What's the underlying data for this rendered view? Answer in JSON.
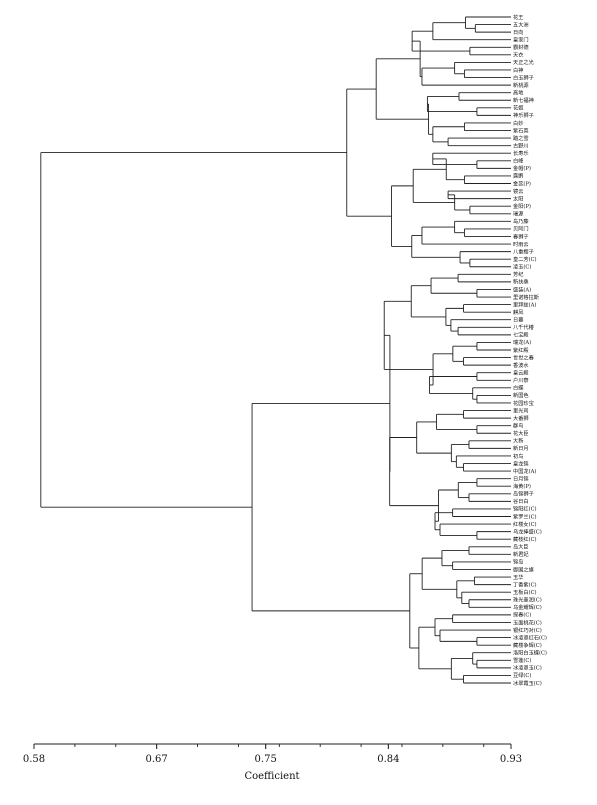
{
  "chart_data": {
    "type": "dendrogram",
    "xlabel": "Coefficient",
    "xlim": [
      0.58,
      0.93
    ],
    "x_ticks": [
      "0.58",
      "0.67",
      "0.75",
      "0.84",
      "0.93"
    ],
    "grid": false,
    "leaves": [
      "花王",
      "五大洲",
      "日向",
      "皇家门",
      "霸封德",
      "天衣",
      "天正之光",
      "白神",
      "白玉狮子",
      "新桃源",
      "高地",
      "新七福神",
      "花姬",
      "神乐狮子",
      "白妙",
      "紫石英",
      "踏之雪",
      "古野川",
      "长寿乐",
      "白峰",
      "金帽(P)",
      "露鹏",
      "金蕊(P)",
      "镜云",
      "太阳",
      "金阳(P)",
      "瑞源",
      "岛乃藤",
      "贝阿门",
      "春狮子",
      "时雨云",
      "八重樱子",
      "皇二芳(C)",
      "凌玉(C)",
      "芳纪",
      "新扶桑",
      "盛装(A)",
      "里诺格拉斯",
      "里拜兹(A)",
      "麒凤",
      "日暮",
      "八千代椿",
      "七宝殿",
      "瑞龙(A)",
      "紫红殿",
      "世世之春",
      "香波水",
      "皇云殿",
      "户川寮",
      "白蝶",
      "新国色",
      "花园珍宝",
      "里光司",
      "大番狮",
      "群鸟",
      "花大臣",
      "大新",
      "新日月",
      "初鸟",
      "皇龙锦",
      "中国龙(A)",
      "日月锦",
      "海黄(P)",
      "岛锦狮子",
      "谷日白",
      "锦阳红(C)",
      "紫罗兰(C)",
      "红楼女(C)",
      "乌龙捧盛(C)",
      "藏枝红(C)",
      "岛大臣",
      "新君妃",
      "锦岛",
      "御国之旗",
      "玉华",
      "丁香紫(C)",
      "玉板白(C)",
      "珠光墨润(C)",
      "乌金耀辉(C)",
      "探春(C)",
      "玉面桃花(C)",
      "银红巧对(C)",
      "冰凌罩红石(C)",
      "藏楼争辉(C)",
      "洛阳白玉蝶(C)",
      "雪莲(C)",
      "冰凌罩玉(C)",
      "豆绿(C)",
      "冰翠霞玉(C)"
    ],
    "merges_note": "",
    "clusters": [
      {
        "name": "",
        "members_first": "花王",
        "members_last": "凌玉(C)"
      },
      {
        "name": "",
        "members_first": "芳纪",
        "members_last": "藏枝红(C)"
      },
      {
        "name": "",
        "members_first": "岛大臣",
        "members_last": "冰翠霞玉(C)"
      }
    ]
  }
}
